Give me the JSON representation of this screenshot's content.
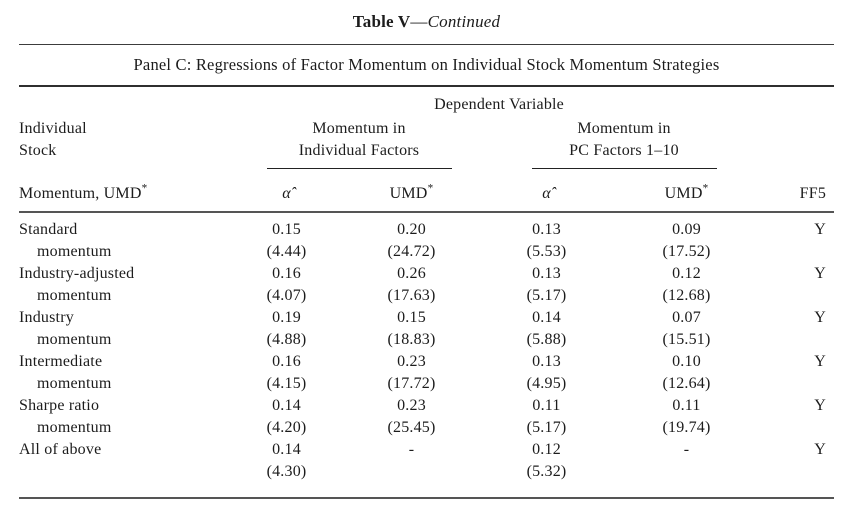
{
  "page": {
    "background": "#ffffff",
    "text_color": "#1c1c1c",
    "rule_color": "#555555"
  },
  "title": {
    "bold": "Table V",
    "dash": "—",
    "italic": "Continued"
  },
  "panel_heading": "Panel C: Regressions of Factor Momentum on Individual Stock Momentum Strategies",
  "table": {
    "dependent_variable_label": "Dependent Variable",
    "stub": {
      "line1": "Individual",
      "line2": "Stock",
      "line3_base": "Momentum, UMD",
      "line3_sup": "*"
    },
    "groups": [
      {
        "line1": "Momentum in",
        "line2": "Individual Factors"
      },
      {
        "line1": "Momentum in",
        "line2": "PC Factors 1–10"
      }
    ],
    "subheaders": {
      "alpha": "α̂",
      "umd_base": "UMD",
      "umd_sup": "*",
      "ff5": "FF5"
    },
    "rows": [
      {
        "label1": "Standard",
        "label2": "momentum",
        "cells": [
          [
            "0.15",
            "(4.44)"
          ],
          [
            "0.20",
            "(24.72)"
          ],
          [
            "0.13",
            "(5.53)"
          ],
          [
            "0.09",
            "(17.52)"
          ]
        ],
        "ff5": "Y"
      },
      {
        "label1": "Industry-adjusted",
        "label2": "momentum",
        "cells": [
          [
            "0.16",
            "(4.07)"
          ],
          [
            "0.26",
            "(17.63)"
          ],
          [
            "0.13",
            "(5.17)"
          ],
          [
            "0.12",
            "(12.68)"
          ]
        ],
        "ff5": "Y"
      },
      {
        "label1": "Industry",
        "label2": "momentum",
        "cells": [
          [
            "0.19",
            "(4.88)"
          ],
          [
            "0.15",
            "(18.83)"
          ],
          [
            "0.14",
            "(5.88)"
          ],
          [
            "0.07",
            "(15.51)"
          ]
        ],
        "ff5": "Y"
      },
      {
        "label1": "Intermediate",
        "label2": "momentum",
        "cells": [
          [
            "0.16",
            "(4.15)"
          ],
          [
            "0.23",
            "(17.72)"
          ],
          [
            "0.13",
            "(4.95)"
          ],
          [
            "0.10",
            "(12.64)"
          ]
        ],
        "ff5": "Y"
      },
      {
        "label1": "Sharpe ratio",
        "label2": "momentum",
        "cells": [
          [
            "0.14",
            "(4.20)"
          ],
          [
            "0.23",
            "(25.45)"
          ],
          [
            "0.11",
            "(5.17)"
          ],
          [
            "0.11",
            "(19.74)"
          ]
        ],
        "ff5": "Y"
      },
      {
        "label1": "All of above",
        "label2": "",
        "cells": [
          [
            "0.14",
            "(4.30)"
          ],
          [
            "-",
            ""
          ],
          [
            "0.12",
            "(5.32)"
          ],
          [
            "-",
            ""
          ]
        ],
        "ff5": "Y"
      }
    ]
  }
}
